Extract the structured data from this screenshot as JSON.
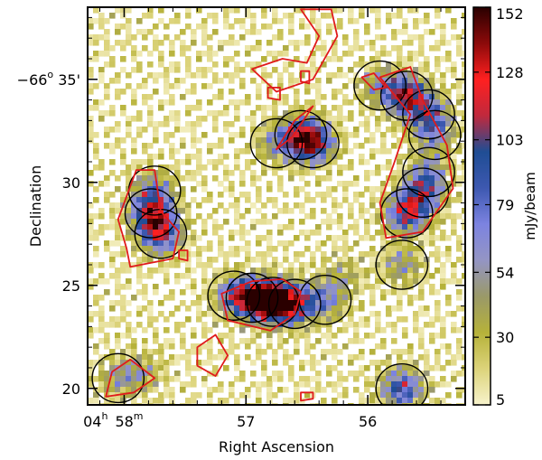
{
  "chart_data": {
    "type": "heatmap",
    "title": "",
    "xlabel": "Right Ascension",
    "ylabel": "Declination",
    "xlim": [
      58.3,
      55.2
    ],
    "ylim": [
      38.5,
      19.2
    ],
    "x_ticks": [
      {
        "value": 58.0,
        "hour_prefix": "04",
        "hour_sup": "h",
        "label": "58",
        "label_sup": "m"
      },
      {
        "value": 57.0,
        "label": "57"
      },
      {
        "value": 56.0,
        "label": "56"
      }
    ],
    "y_ticks": [
      {
        "value": 20,
        "label": "20"
      },
      {
        "value": 25,
        "label": "25"
      },
      {
        "value": 30,
        "label": "30"
      },
      {
        "value": 35,
        "label": "35'",
        "degree_prefix": "−66",
        "degree_sup": "o"
      }
    ],
    "colorbar": {
      "label": "mJy/beam",
      "ticks": [
        "5",
        "30",
        "54",
        "79",
        "103",
        "128",
        "152"
      ],
      "tick_values": [
        5,
        30,
        54,
        79,
        103,
        128,
        152
      ],
      "range": [
        5,
        152
      ],
      "colors": [
        "#f7f3cc",
        "#dcd37a",
        "#b6b23a",
        "#9a9968",
        "#9495c4",
        "#7c83e0",
        "#3d58b0",
        "#1f4d94",
        "#c0293d",
        "#ff2020",
        "#8c0a0a",
        "#2a0000"
      ]
    },
    "emission_regions": [
      {
        "ra": 56.78,
        "dec": 24.2,
        "peak": 150
      },
      {
        "ra": 56.95,
        "dec": 24.4,
        "peak": 95
      },
      {
        "ra": 56.6,
        "dec": 24.1,
        "peak": 90
      },
      {
        "ra": 57.1,
        "dec": 24.5,
        "peak": 60
      },
      {
        "ra": 56.35,
        "dec": 24.3,
        "peak": 55
      },
      {
        "ra": 57.7,
        "dec": 27.5,
        "peak": 95
      },
      {
        "ra": 57.78,
        "dec": 28.5,
        "peak": 95
      },
      {
        "ra": 57.75,
        "dec": 29.6,
        "peak": 55
      },
      {
        "ra": 56.45,
        "dec": 31.9,
        "peak": 105
      },
      {
        "ra": 56.55,
        "dec": 32.3,
        "peak": 70
      },
      {
        "ra": 56.75,
        "dec": 31.9,
        "peak": 45
      },
      {
        "ra": 55.68,
        "dec": 28.5,
        "peak": 100
      },
      {
        "ra": 55.55,
        "dec": 29.5,
        "peak": 75
      },
      {
        "ra": 55.5,
        "dec": 30.5,
        "peak": 45
      },
      {
        "ra": 55.68,
        "dec": 34.2,
        "peak": 110
      },
      {
        "ra": 55.5,
        "dec": 33.3,
        "peak": 70
      },
      {
        "ra": 55.45,
        "dec": 32.3,
        "peak": 45
      },
      {
        "ra": 55.9,
        "dec": 34.7,
        "peak": 45
      },
      {
        "ra": 55.72,
        "dec": 20.0,
        "peak": 90
      },
      {
        "ra": 55.72,
        "dec": 26.0,
        "peak": 45
      },
      {
        "ra": 58.05,
        "dec": 20.5,
        "peak": 40
      },
      {
        "ra": 57.85,
        "dec": 20.8,
        "peak": 35
      },
      {
        "ra": 56.2,
        "dec": 25.5,
        "peak": 30
      }
    ],
    "red_contours": [
      [
        [
          56.8,
          22.8
        ],
        [
          57.15,
          23.3
        ],
        [
          57.2,
          24.6
        ],
        [
          56.95,
          25.2
        ],
        [
          56.7,
          25.3
        ],
        [
          56.55,
          24.7
        ],
        [
          56.6,
          23.6
        ]
      ],
      [
        [
          57.95,
          25.9
        ],
        [
          57.6,
          26.3
        ],
        [
          57.55,
          27.6
        ],
        [
          57.7,
          28.6
        ],
        [
          57.75,
          30.6
        ],
        [
          57.9,
          30.6
        ],
        [
          58.05,
          28.2
        ],
        [
          57.98,
          26.8
        ]
      ],
      [
        [
          55.85,
          27.3
        ],
        [
          55.55,
          27.6
        ],
        [
          55.3,
          29.7
        ],
        [
          55.35,
          31.8
        ],
        [
          55.55,
          34.0
        ],
        [
          55.65,
          35.6
        ],
        [
          55.9,
          35.1
        ],
        [
          55.65,
          33.3
        ],
        [
          55.78,
          31.0
        ],
        [
          55.9,
          29.0
        ]
      ],
      [
        [
          57.25,
          20.6
        ],
        [
          57.4,
          21.1
        ],
        [
          57.4,
          22.0
        ],
        [
          57.25,
          22.6
        ],
        [
          57.15,
          21.6
        ]
      ],
      [
        [
          56.95,
          35.5
        ],
        [
          56.7,
          36.0
        ],
        [
          56.5,
          35.8
        ],
        [
          56.4,
          37.1
        ],
        [
          56.55,
          38.4
        ],
        [
          56.3,
          38.4
        ],
        [
          56.25,
          37.1
        ],
        [
          56.45,
          35.0
        ],
        [
          56.75,
          34.4
        ]
      ],
      [
        [
          58.15,
          19.6
        ],
        [
          57.92,
          19.8
        ],
        [
          57.75,
          20.5
        ],
        [
          57.95,
          21.4
        ],
        [
          58.1,
          20.8
        ]
      ],
      [
        [
          56.75,
          31.6
        ],
        [
          56.6,
          33.0
        ],
        [
          56.45,
          33.7
        ],
        [
          56.62,
          32.2
        ]
      ],
      [
        [
          56.82,
          34.1
        ],
        [
          56.72,
          34.0
        ],
        [
          56.72,
          34.6
        ],
        [
          56.82,
          34.6
        ]
      ],
      [
        [
          56.55,
          34.9
        ],
        [
          56.48,
          34.8
        ],
        [
          56.48,
          35.4
        ],
        [
          56.55,
          35.4
        ]
      ],
      [
        [
          57.55,
          26.3
        ],
        [
          57.48,
          26.2
        ],
        [
          57.48,
          26.7
        ],
        [
          57.55,
          26.7
        ]
      ],
      [
        [
          56.55,
          19.4
        ],
        [
          56.45,
          19.5
        ],
        [
          56.45,
          19.8
        ],
        [
          56.55,
          19.8
        ]
      ],
      [
        [
          55.85,
          34.6
        ],
        [
          55.95,
          35.3
        ],
        [
          56.05,
          35.1
        ],
        [
          55.95,
          34.5
        ]
      ]
    ]
  }
}
